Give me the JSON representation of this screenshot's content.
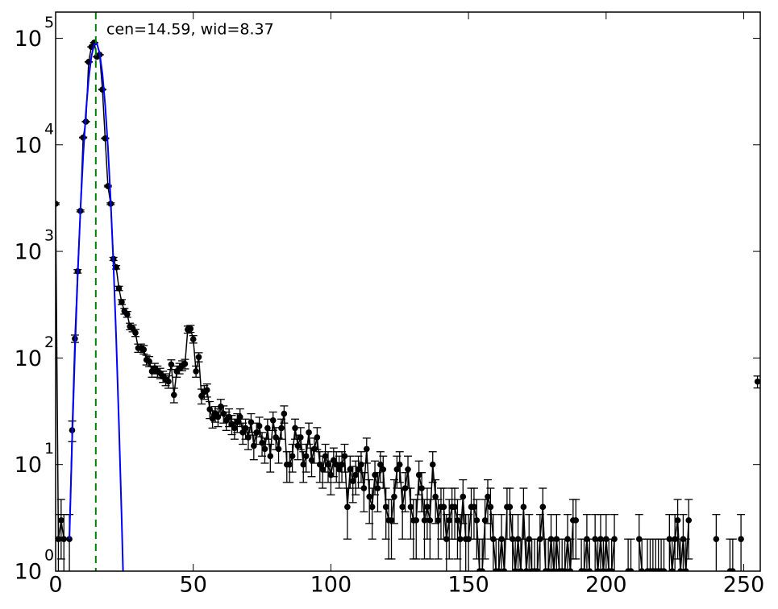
{
  "chart_data": {
    "type": "scatter",
    "annotation": "cen=14.59, wid=8.37",
    "annotation_color": "#008000",
    "xlim": [
      0,
      256
    ],
    "ylim": [
      1,
      176000
    ],
    "log_y": true,
    "xticks": [
      0,
      50,
      100,
      150,
      200,
      250
    ],
    "yticks": [
      {
        "value": 1,
        "label": "10",
        "exponent": "0"
      },
      {
        "value": 10,
        "label": "10",
        "exponent": "1"
      },
      {
        "value": 100,
        "label": "10",
        "exponent": "2"
      },
      {
        "value": 1000,
        "label": "10",
        "exponent": "3"
      },
      {
        "value": 10000,
        "label": "10",
        "exponent": "4"
      },
      {
        "value": 100000,
        "label": "10",
        "exponent": "5"
      }
    ],
    "vlines": [
      {
        "x": 14.59,
        "color": "#008000"
      }
    ],
    "series": [
      {
        "kind": "errorbar",
        "color": "#000000",
        "x": [
          0,
          1,
          2,
          3,
          4,
          5,
          6,
          7,
          8,
          9,
          10,
          11,
          12,
          13,
          14,
          15,
          16,
          17,
          18,
          19,
          20,
          21,
          22,
          23,
          24,
          25,
          26,
          27,
          28,
          29,
          30,
          31,
          32,
          33,
          34,
          35,
          36,
          37,
          38,
          39,
          40,
          41,
          42,
          43,
          44,
          45,
          46,
          47,
          48,
          49,
          50,
          51,
          52,
          53,
          54,
          55,
          56,
          57,
          58,
          59,
          60,
          61,
          62,
          63,
          64,
          65,
          66,
          67,
          68,
          69,
          70,
          71,
          72,
          73,
          74,
          75,
          76,
          77,
          78,
          79,
          80,
          81,
          82,
          83,
          84,
          85,
          86,
          87,
          88,
          89,
          90,
          91,
          92,
          93,
          94,
          95,
          96,
          97,
          98,
          99,
          100,
          101,
          102,
          103,
          104,
          105,
          106,
          107,
          108,
          109,
          110,
          111,
          112,
          113,
          114,
          115,
          116,
          117,
          118,
          119,
          120,
          121,
          122,
          123,
          124,
          125,
          126,
          127,
          128,
          129,
          130,
          131,
          132,
          133,
          134,
          135,
          136,
          137,
          138,
          139,
          140,
          141,
          142,
          143,
          144,
          145,
          146,
          147,
          148,
          149,
          150,
          151,
          152,
          153,
          154,
          155,
          156,
          157,
          158,
          159,
          160,
          161,
          162,
          163,
          164,
          165,
          166,
          167,
          168,
          169,
          170,
          171,
          172,
          173,
          174,
          175,
          176,
          177,
          178,
          179,
          180,
          181,
          182,
          183,
          184,
          185,
          186,
          187,
          188,
          189,
          190,
          191,
          192,
          193,
          194,
          195,
          196,
          197,
          198,
          199,
          200,
          201,
          202,
          203,
          204,
          205,
          206,
          207,
          208,
          209,
          210,
          211,
          212,
          213,
          214,
          215,
          216,
          217,
          218,
          219,
          220,
          221,
          222,
          223,
          224,
          225,
          226,
          227,
          228,
          229,
          230,
          231,
          232,
          233,
          234,
          235,
          236,
          237,
          238,
          239,
          240,
          241,
          242,
          243,
          244,
          245,
          246,
          247,
          248,
          249,
          250,
          251,
          252,
          253,
          254,
          255
        ],
        "values": [
          2800,
          2,
          3,
          2,
          null,
          2,
          21,
          152,
          650,
          2400,
          11700,
          16500,
          60000,
          83000,
          91000,
          67000,
          70000,
          33000,
          11500,
          4100,
          2800,
          850,
          710,
          450,
          335,
          275,
          257,
          198,
          190,
          172,
          124,
          124,
          120,
          96,
          93,
          75,
          80,
          75,
          72,
          67,
          63,
          60,
          87,
          45,
          75,
          80,
          85,
          88,
          185,
          188,
          150,
          75,
          102,
          44,
          48,
          50,
          33,
          27,
          30,
          28,
          35,
          30,
          26,
          28,
          24,
          22,
          25,
          28,
          20,
          22,
          18,
          25,
          15,
          20,
          23,
          16,
          14,
          22,
          12,
          26,
          18,
          14,
          22,
          30,
          10,
          10,
          12,
          22,
          15,
          18,
          10,
          12,
          20,
          11,
          14,
          18,
          10,
          9,
          12,
          10,
          8,
          11,
          10,
          9,
          10,
          12,
          4,
          9,
          7,
          8,
          9,
          10,
          6,
          14,
          5,
          4,
          8,
          6,
          10,
          9,
          4,
          3,
          3,
          5,
          9,
          10,
          4,
          6,
          9,
          4,
          3,
          3,
          8,
          6,
          3,
          4,
          3,
          10,
          5,
          3,
          4,
          4,
          2,
          3,
          4,
          4,
          3,
          2,
          5,
          2,
          2,
          4,
          4,
          3,
          1,
          1,
          3,
          5,
          4,
          2,
          1,
          1,
          2,
          1,
          4,
          4,
          2,
          1,
          2,
          1,
          4,
          1,
          2,
          1,
          1,
          1,
          2,
          4,
          1,
          1,
          2,
          1,
          2,
          1,
          1,
          1,
          2,
          1,
          3,
          3,
          null,
          1,
          1,
          2,
          1,
          null,
          2,
          1,
          2,
          1,
          2,
          1,
          1,
          2,
          null,
          null,
          null,
          null,
          1,
          1,
          null,
          null,
          2,
          1,
          null,
          1,
          1,
          1,
          1,
          1,
          1,
          1,
          null,
          2,
          1,
          2,
          3,
          1,
          2,
          1,
          3,
          null,
          null,
          null,
          null,
          null,
          null,
          null,
          null,
          null,
          2,
          null,
          null,
          null,
          null,
          1,
          1,
          null,
          null,
          2,
          null,
          null,
          null,
          null,
          null,
          60
        ],
        "errors": [
          53,
          1.4,
          1.7,
          1.4,
          null,
          1.4,
          4.6,
          12,
          25,
          49,
          108,
          128,
          245,
          288,
          302,
          259,
          265,
          182,
          107,
          64,
          53,
          29,
          27,
          21,
          18,
          17,
          16,
          14,
          14,
          13,
          11,
          11,
          11,
          10,
          10,
          9,
          9,
          9,
          8,
          8,
          8,
          8,
          9,
          7,
          9,
          9,
          9,
          9,
          14,
          14,
          12,
          9,
          10,
          7,
          7,
          7,
          6,
          5,
          5,
          5.3,
          5.9,
          5.5,
          5.1,
          5.3,
          4.9,
          4.7,
          5,
          5.3,
          4.5,
          4.7,
          4.2,
          5,
          3.9,
          4.5,
          4.8,
          4,
          3.7,
          4.7,
          3.5,
          5.1,
          4.2,
          3.7,
          4.7,
          5.5,
          3.2,
          3.2,
          3.5,
          4.7,
          3.9,
          4.2,
          3.2,
          3.5,
          4.5,
          3.3,
          3.7,
          4.2,
          3.2,
          3,
          3.5,
          3.2,
          2.8,
          3.3,
          3.2,
          3,
          3.2,
          3.5,
          2,
          3,
          2.6,
          2.8,
          3,
          3.2,
          2.4,
          3.7,
          2.2,
          2,
          2.8,
          2.4,
          3.2,
          3,
          2,
          1.7,
          1.7,
          2.2,
          3,
          3.2,
          2,
          2.4,
          3,
          2,
          1.7,
          1.7,
          2.8,
          2.4,
          1.7,
          2,
          1.7,
          3.2,
          2.2,
          1.7,
          2,
          2,
          1.4,
          1.7,
          2,
          2,
          1.7,
          1.4,
          2.2,
          1.4,
          1.4,
          2,
          2,
          1.7,
          1,
          1,
          1.7,
          2.2,
          2,
          1.4,
          1,
          1,
          1.4,
          1,
          2,
          2,
          1.4,
          1,
          1.4,
          1,
          2,
          1,
          1.4,
          1,
          1,
          1,
          1.4,
          2,
          1,
          1,
          1.4,
          1,
          1.4,
          1,
          1,
          1,
          1.4,
          1,
          1.7,
          1.7,
          null,
          1,
          1,
          1.4,
          1,
          null,
          1.4,
          1,
          1.4,
          1,
          1.4,
          1,
          1,
          1.4,
          null,
          null,
          null,
          null,
          1,
          1,
          null,
          null,
          1.4,
          1,
          null,
          1,
          1,
          1,
          1,
          1,
          1,
          1,
          null,
          1.4,
          1,
          1.4,
          1.7,
          1,
          1.4,
          1,
          1.7,
          null,
          null,
          null,
          null,
          null,
          null,
          null,
          null,
          null,
          1.4,
          null,
          null,
          null,
          null,
          1,
          1,
          null,
          null,
          1.4,
          null,
          null,
          null,
          null,
          null,
          7.7
        ]
      },
      {
        "kind": "line",
        "color": "#0000ff",
        "x": [
          5,
          6,
          7,
          8,
          9,
          10,
          11,
          12,
          13,
          14,
          15,
          16,
          17,
          18,
          19,
          20,
          21,
          22,
          23,
          24,
          25
        ],
        "values": [
          2.0,
          17,
          112,
          583,
          2400,
          7850,
          20300,
          41700,
          67800,
          87300,
          89200,
          72200,
          46300,
          23600,
          9500,
          3000,
          765,
          154,
          24,
          3.1,
          0.31
        ]
      }
    ]
  }
}
